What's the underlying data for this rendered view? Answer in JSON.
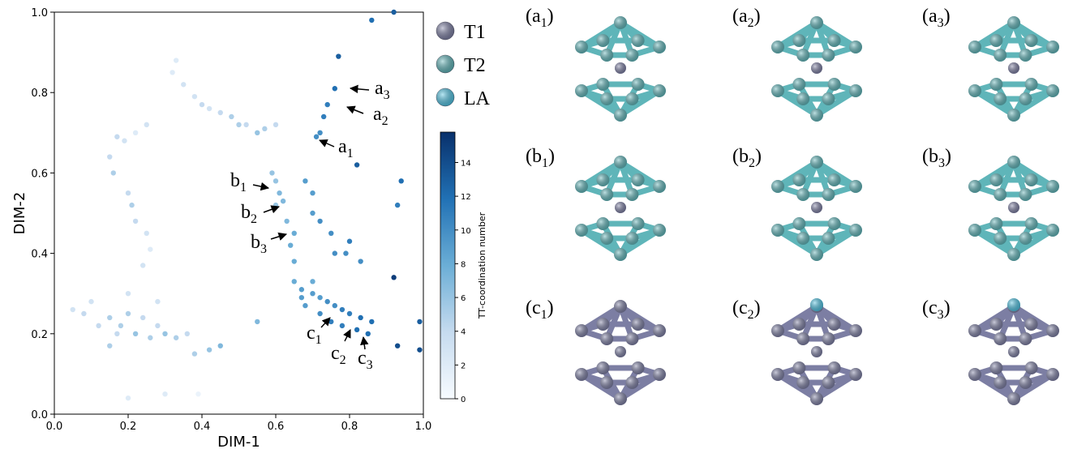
{
  "chart_data": {
    "type": "scatter",
    "xlabel": "DIM-1",
    "ylabel": "DIM-2",
    "xlim": [
      0,
      1
    ],
    "ylim": [
      0,
      1
    ],
    "xticks": [
      {
        "value": 0,
        "label": "0.0"
      },
      {
        "value": 0.2,
        "label": "0.2"
      },
      {
        "value": 0.4,
        "label": "0.4"
      },
      {
        "value": 0.6,
        "label": "0.6"
      },
      {
        "value": 0.8,
        "label": "0.8"
      },
      {
        "value": 1,
        "label": "1.0"
      }
    ],
    "yticks": [
      {
        "value": 0,
        "label": "0.0"
      },
      {
        "value": 0.2,
        "label": "0.2"
      },
      {
        "value": 0.4,
        "label": "0.4"
      },
      {
        "value": 0.6,
        "label": "0.6"
      },
      {
        "value": 0.8,
        "label": "0.8"
      },
      {
        "value": 1,
        "label": "1.0"
      }
    ],
    "colorbar": {
      "label": "TT-coordination number",
      "clim": [
        0,
        15.8
      ],
      "ticks": [
        0,
        2,
        4,
        6,
        8,
        10,
        12,
        14
      ],
      "colormap": [
        "#f7fbff",
        "#c6dbef",
        "#6baed6",
        "#2171b5",
        "#08306b"
      ]
    },
    "x": [
      0.33,
      0.32,
      0.35,
      0.38,
      0.4,
      0.42,
      0.45,
      0.48,
      0.5,
      0.52,
      0.55,
      0.57,
      0.6,
      0.25,
      0.22,
      0.19,
      0.17,
      0.15,
      0.16,
      0.2,
      0.21,
      0.22,
      0.25,
      0.26,
      0.24,
      0.05,
      0.08,
      0.1,
      0.12,
      0.15,
      0.17,
      0.18,
      0.2,
      0.22,
      0.24,
      0.26,
      0.28,
      0.3,
      0.33,
      0.36,
      0.15,
      0.2,
      0.28,
      0.38,
      0.42,
      0.45,
      0.55,
      0.2,
      0.3,
      0.39,
      0.59,
      0.6,
      0.61,
      0.62,
      0.6,
      0.63,
      0.65,
      0.64,
      0.65,
      0.68,
      0.7,
      0.7,
      0.72,
      0.75,
      0.8,
      0.76,
      0.79,
      0.83,
      0.65,
      0.67,
      0.7,
      0.72,
      0.74,
      0.76,
      0.78,
      0.8,
      0.83,
      0.86,
      0.68,
      0.72,
      0.75,
      0.78,
      0.82,
      0.85,
      0.7,
      0.67,
      0.71,
      0.72,
      0.73,
      0.74,
      0.76,
      0.77,
      0.86,
      0.92,
      0.82,
      0.94,
      0.93,
      0.92,
      0.93,
      0.99,
      0.99
    ],
    "y": [
      0.88,
      0.85,
      0.82,
      0.79,
      0.77,
      0.76,
      0.75,
      0.74,
      0.72,
      0.72,
      0.7,
      0.71,
      0.72,
      0.72,
      0.7,
      0.68,
      0.69,
      0.64,
      0.6,
      0.55,
      0.52,
      0.48,
      0.45,
      0.41,
      0.37,
      0.26,
      0.25,
      0.28,
      0.22,
      0.24,
      0.2,
      0.22,
      0.25,
      0.2,
      0.24,
      0.19,
      0.22,
      0.2,
      0.19,
      0.2,
      0.17,
      0.3,
      0.28,
      0.15,
      0.16,
      0.17,
      0.23,
      0.04,
      0.05,
      0.05,
      0.6,
      0.58,
      0.55,
      0.53,
      0.52,
      0.48,
      0.45,
      0.42,
      0.38,
      0.58,
      0.55,
      0.5,
      0.48,
      0.45,
      0.43,
      0.4,
      0.4,
      0.38,
      0.33,
      0.31,
      0.3,
      0.29,
      0.28,
      0.27,
      0.26,
      0.25,
      0.24,
      0.23,
      0.27,
      0.25,
      0.23,
      0.22,
      0.21,
      0.2,
      0.33,
      0.29,
      0.69,
      0.7,
      0.74,
      0.77,
      0.81,
      0.89,
      0.98,
      1.0,
      0.62,
      0.58,
      0.52,
      0.34,
      0.17,
      0.16,
      0.23
    ],
    "c": [
      2,
      2,
      3,
      3,
      4,
      3,
      4,
      5,
      5,
      4,
      6,
      5,
      4,
      3,
      2,
      3,
      4,
      4,
      5,
      4,
      5,
      4,
      3,
      2,
      3,
      3,
      4,
      3,
      4,
      5,
      4,
      5,
      5,
      6,
      4,
      5,
      4,
      6,
      5,
      4,
      5,
      3,
      3,
      5,
      6,
      7,
      7,
      2,
      2,
      1,
      6,
      6,
      7,
      7,
      6,
      7,
      8,
      8,
      8,
      9,
      9,
      9,
      10,
      10,
      11,
      10,
      10,
      10,
      8,
      9,
      9,
      9,
      10,
      10,
      11,
      11,
      12,
      12,
      9,
      10,
      11,
      11,
      12,
      12,
      8,
      9,
      10,
      10,
      11,
      11,
      12,
      13,
      12,
      13,
      13,
      12,
      11,
      15,
      14,
      14,
      13
    ],
    "annotations": [
      {
        "text": "a",
        "sub": "3"
      },
      {
        "text": "a",
        "sub": "2"
      },
      {
        "text": "a",
        "sub": "1"
      },
      {
        "text": "b",
        "sub": "1"
      },
      {
        "text": "b",
        "sub": "2"
      },
      {
        "text": "b",
        "sub": "3"
      },
      {
        "text": "c",
        "sub": "1"
      },
      {
        "text": "c",
        "sub": "2"
      },
      {
        "text": "c",
        "sub": "3"
      }
    ],
    "legend": [
      {
        "name": "T1",
        "color": "#7c7ea3"
      },
      {
        "name": "T2",
        "color": "#5fb5b9"
      },
      {
        "name": "LA",
        "color": "#4fc3e3"
      }
    ],
    "panels": [
      {
        "open": "(a",
        "sub": "1",
        "close": ")"
      },
      {
        "open": "(a",
        "sub": "2",
        "close": ")"
      },
      {
        "open": "(a",
        "sub": "3",
        "close": ")"
      },
      {
        "open": "(b",
        "sub": "1",
        "close": ")"
      },
      {
        "open": "(b",
        "sub": "2",
        "close": ")"
      },
      {
        "open": "(b",
        "sub": "3",
        "close": ")"
      },
      {
        "open": "(c",
        "sub": "1",
        "close": ")"
      },
      {
        "open": "(c",
        "sub": "2",
        "close": ")"
      },
      {
        "open": "(c",
        "sub": "3",
        "close": ")"
      }
    ]
  }
}
